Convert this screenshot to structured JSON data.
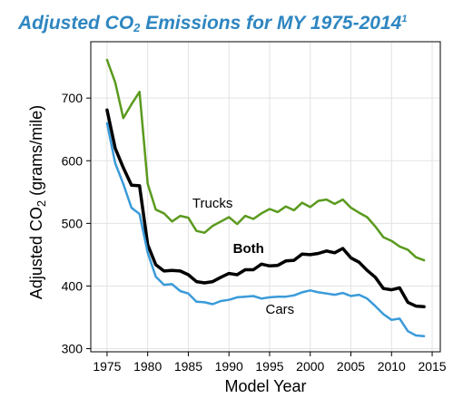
{
  "chart_data": {
    "type": "line",
    "title": {
      "prefix": "Adjusted CO",
      "subscript": "2",
      "middle": " Emissions for MY 1975-2014",
      "superscript": "1"
    },
    "xlabel": "Model Year",
    "ylabel": {
      "prefix": "Adjusted CO",
      "subscript": "2",
      "suffix": " (grams/mile)"
    },
    "xlim": [
      1973,
      2016
    ],
    "ylim": [
      295,
      790
    ],
    "xticks": [
      1975,
      1980,
      1985,
      1990,
      1995,
      2000,
      2005,
      2010,
      2015
    ],
    "yticks": [
      300,
      400,
      500,
      600,
      700
    ],
    "grid": true,
    "series": [
      {
        "name": "Trucks",
        "color": "#5a9a1e",
        "width": 2.5,
        "bold": false,
        "label_pos": [
          1985.5,
          525
        ],
        "x": [
          1975,
          1976,
          1977,
          1978,
          1979,
          1980,
          1981,
          1982,
          1983,
          1984,
          1985,
          1986,
          1987,
          1988,
          1989,
          1990,
          1991,
          1992,
          1993,
          1994,
          1995,
          1996,
          1997,
          1998,
          1999,
          2000,
          2001,
          2002,
          2003,
          2004,
          2005,
          2006,
          2007,
          2008,
          2009,
          2010,
          2011,
          2012,
          2013,
          2014
        ],
        "y": [
          761,
          725,
          668,
          690,
          710,
          563,
          522,
          516,
          503,
          512,
          509,
          488,
          485,
          496,
          503,
          510,
          499,
          512,
          507,
          516,
          523,
          518,
          527,
          521,
          533,
          526,
          536,
          538,
          531,
          538,
          525,
          517,
          510,
          495,
          478,
          472,
          463,
          458,
          446,
          441
        ]
      },
      {
        "name": "Both",
        "color": "#000000",
        "width": 3.5,
        "bold": true,
        "label_pos": [
          1990.5,
          453
        ],
        "x": [
          1975,
          1976,
          1977,
          1978,
          1979,
          1980,
          1981,
          1982,
          1983,
          1984,
          1985,
          1986,
          1987,
          1988,
          1989,
          1990,
          1991,
          1992,
          1993,
          1994,
          1995,
          1996,
          1997,
          1998,
          1999,
          2000,
          2001,
          2002,
          2003,
          2004,
          2005,
          2006,
          2007,
          2008,
          2009,
          2010,
          2011,
          2012,
          2013,
          2014
        ],
        "y": [
          681,
          620,
          589,
          561,
          560,
          466,
          434,
          424,
          425,
          424,
          418,
          407,
          405,
          407,
          414,
          420,
          418,
          426,
          426,
          435,
          432,
          433,
          440,
          441,
          451,
          450,
          452,
          456,
          453,
          460,
          445,
          438,
          425,
          414,
          396,
          394,
          397,
          374,
          368,
          367
        ]
      },
      {
        "name": "Cars",
        "color": "#3a9bd9",
        "width": 2.5,
        "bold": false,
        "label_pos": [
          1994.5,
          356
        ],
        "x": [
          1975,
          1976,
          1977,
          1978,
          1979,
          1980,
          1981,
          1982,
          1983,
          1984,
          1985,
          1986,
          1987,
          1988,
          1989,
          1990,
          1991,
          1992,
          1993,
          1994,
          1995,
          1996,
          1997,
          1998,
          1999,
          2000,
          2001,
          2002,
          2003,
          2004,
          2005,
          2006,
          2007,
          2008,
          2009,
          2010,
          2011,
          2012,
          2013,
          2014
        ],
        "y": [
          660,
          596,
          563,
          525,
          515,
          453,
          415,
          402,
          403,
          392,
          388,
          375,
          374,
          371,
          376,
          378,
          382,
          383,
          384,
          380,
          382,
          383,
          383,
          385,
          390,
          393,
          390,
          388,
          386,
          389,
          384,
          386,
          380,
          368,
          355,
          346,
          348,
          328,
          321,
          320
        ]
      }
    ]
  }
}
